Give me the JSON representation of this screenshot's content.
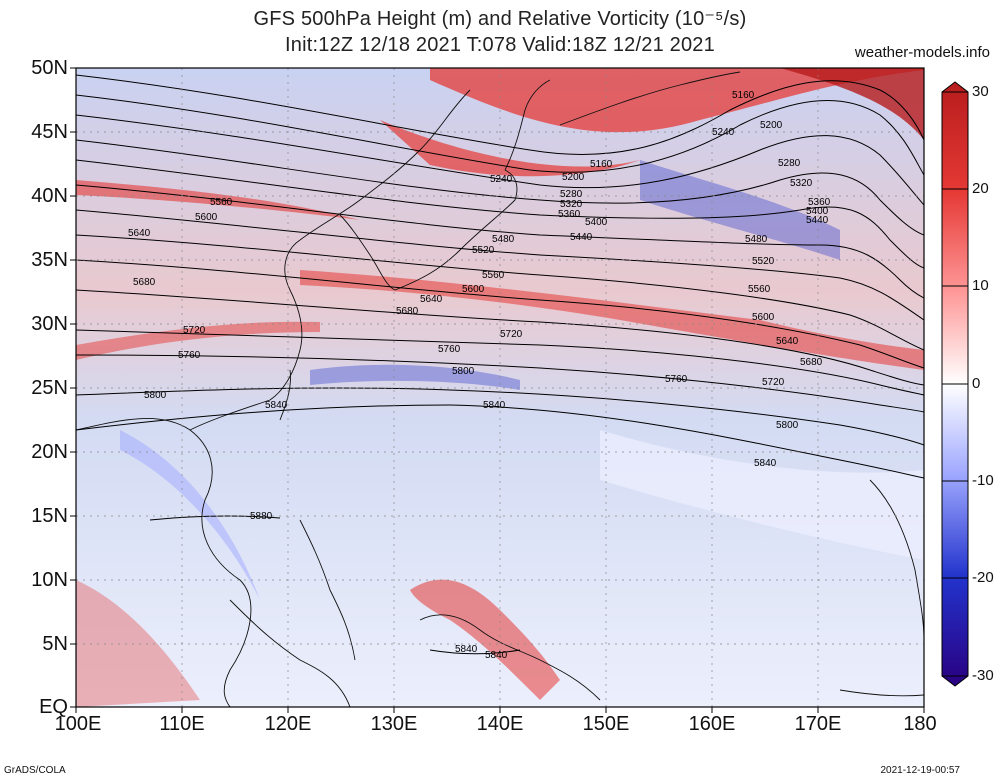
{
  "title_line1": "GFS 500hPa Height (m) and Relative Vorticity (10⁻⁵/s)",
  "title_line2": "Init:12Z 12/18 2021 T:078 Valid:18Z 12/21 2021",
  "site": "weather-models.info",
  "footer_left": "GrADS/COLA",
  "footer_right": "2021-12-19-00:57",
  "lat_labels": [
    "50N",
    "45N",
    "40N",
    "35N",
    "30N",
    "25N",
    "20N",
    "15N",
    "10N",
    "5N",
    "EQ"
  ],
  "lon_labels": [
    "100E",
    "110E",
    "120E",
    "130E",
    "140E",
    "150E",
    "160E",
    "170E",
    "180"
  ],
  "colorbar": {
    "labels": [
      "30",
      "20",
      "10",
      "0",
      "-10",
      "-20",
      "-30"
    ],
    "colors": [
      "#b71c1c",
      "#e53935",
      "#ff9a9a",
      "#ffffff",
      "#9fa8ff",
      "#2233cc",
      "#2a0080"
    ]
  },
  "contour_labels": [
    "5160",
    "5200",
    "5240",
    "5280",
    "5320",
    "5360",
    "5400",
    "5440",
    "5480",
    "5520",
    "5560",
    "5600",
    "5640",
    "5680",
    "5720",
    "5760",
    "5800",
    "5840",
    "5880"
  ],
  "map": {
    "lat_range": [
      0,
      50
    ],
    "lon_range": [
      100,
      180
    ],
    "contour_interval_m": 40
  }
}
